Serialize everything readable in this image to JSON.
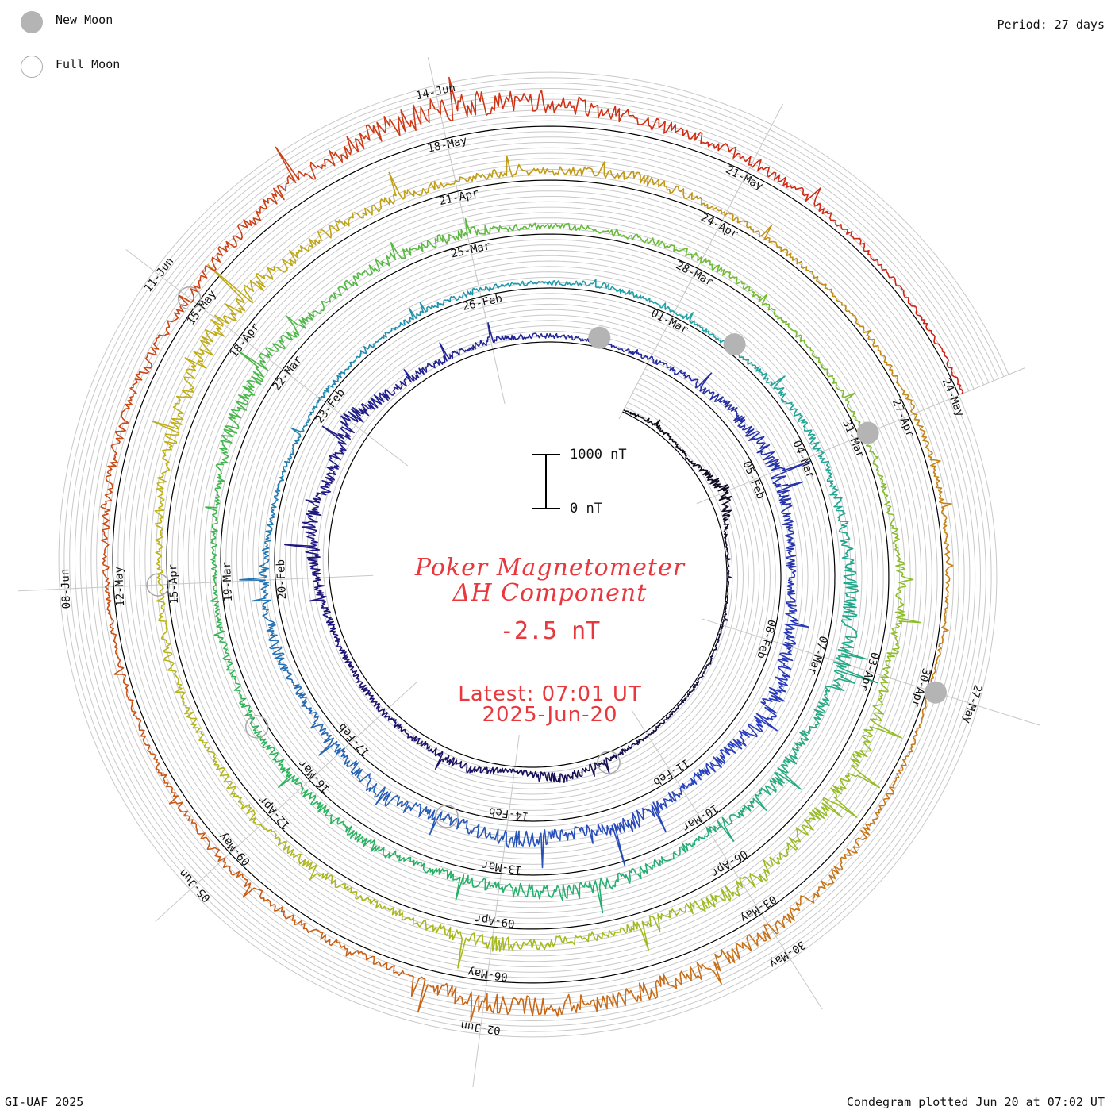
{
  "header": {
    "period": "Period: 27 days"
  },
  "legend": {
    "new_moon": "New Moon",
    "full_moon": "Full Moon"
  },
  "title": {
    "line1": "Poker Magnetometer",
    "line2": "ΔH Component",
    "value": "-2.5 nT"
  },
  "latest": {
    "time": "Latest: 07:01 UT",
    "date": "2025-Jun-20"
  },
  "scale": {
    "top_label": "1000 nT",
    "bottom_label": "0 nT"
  },
  "footer": {
    "credit": "GI-UAF 2025",
    "plotted": "Condegram plotted Jun 20 at 07:02 UT"
  },
  "colors": {
    "title": "#e8383d",
    "grid": "#c8c8c8",
    "baseline": "#000000",
    "new_moon": "#b4b4b4",
    "full_moon": "#a8a8a8"
  },
  "chart_data": {
    "type": "line",
    "layout": "spiral condegram",
    "period_days": 27,
    "start_date": "2025-02-02",
    "end_date": "2025-06-20",
    "scale_nT": [
      0,
      1000
    ],
    "date_labels": [
      "05-Feb",
      "08-Feb",
      "11-Feb",
      "14-Feb",
      "17-Feb",
      "20-Feb",
      "23-Feb",
      "26-Feb",
      "01-Mar",
      "04-Mar",
      "07-Mar",
      "10-Mar",
      "13-Mar",
      "16-Mar",
      "19-Mar",
      "22-Mar",
      "25-Mar",
      "28-Mar",
      "31-Mar",
      "03-Apr",
      "06-Apr",
      "09-Apr",
      "12-Apr",
      "15-Apr",
      "18-Apr",
      "21-Apr",
      "24-Apr",
      "27-Apr",
      "30-Apr",
      "03-May",
      "06-May",
      "09-May",
      "12-May",
      "15-May",
      "18-May",
      "21-May",
      "24-May",
      "27-May",
      "30-May",
      "02-Jun",
      "05-Jun",
      "08-Jun",
      "11-Jun",
      "14-Jun"
    ],
    "new_moon_dates": [
      "2025-02-28",
      "2025-03-29",
      "2025-04-27",
      "2025-05-27"
    ],
    "full_moon_dates": [
      "2025-02-12",
      "2025-03-14",
      "2025-04-13",
      "2025-05-12",
      "2025-06-11"
    ],
    "series": [
      {
        "values": [
          40,
          120,
          60,
          380,
          50,
          30,
          40,
          70,
          60,
          90,
          150,
          280,
          90,
          250,
          170,
          180,
          130,
          160,
          270,
          460,
          300,
          520,
          230,
          180,
          200,
          140,
          90,
          110
        ]
      },
      {
        "values": [
          220,
          330,
          430,
          270,
          220,
          380,
          540,
          360,
          290,
          450,
          330,
          430,
          250,
          420,
          260,
          200,
          300,
          250,
          140,
          100,
          130,
          110,
          130,
          160,
          110,
          160,
          100,
          90
        ]
      },
      {
        "values": [
          200,
          250,
          280,
          370,
          470,
          310,
          420,
          210,
          330,
          440,
          300,
          240,
          320,
          250,
          230,
          200,
          140,
          190,
          360,
          420,
          270,
          320,
          250,
          180,
          160,
          230,
          130,
          110
        ]
      },
      {
        "values": [
          120,
          150,
          310,
          260,
          430,
          370,
          500,
          250,
          280,
          380,
          230,
          220,
          280,
          180,
          260,
          160,
          250,
          390,
          530,
          380,
          290,
          240,
          200,
          280,
          160,
          130,
          120,
          150
        ]
      },
      {
        "values": [
          130,
          110,
          60,
          170,
          300,
          410,
          490,
          530,
          520,
          180,
          210,
          230,
          160,
          120,
          140,
          240,
          270,
          210,
          380,
          560,
          660,
          550,
          320,
          280,
          170,
          110,
          90,
          80
        ]
      },
      {
        "values": [
          90,
          110,
          220,
          200,
          140,
          410,
          380,
          320,
          310,
          230,
          180,
          130,
          160,
          110,
          140,
          140,
          190,
          220,
          300,
          250,
          150,
          130,
          120,
          90,
          100,
          80,
          70,
          60
        ]
      }
    ]
  }
}
